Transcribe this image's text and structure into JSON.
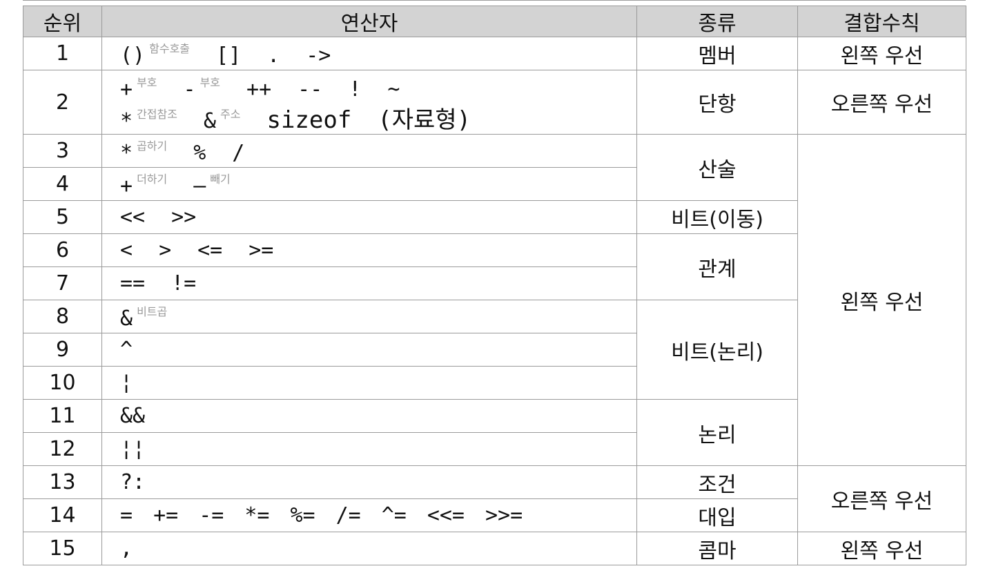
{
  "table": {
    "headers": [
      "순위",
      "연산자",
      "종류",
      "결합수칙"
    ],
    "rows": [
      {
        "rank": "1",
        "lines": [
          [
            {
              "op": "()",
              "note": "함수호출"
            },
            {
              "op": "[]"
            },
            {
              "op": "."
            },
            {
              "op": "->"
            }
          ]
        ]
      },
      {
        "rank": "2",
        "lines": [
          [
            {
              "op": "+",
              "note": "부호"
            },
            {
              "op": "-",
              "note": "부호"
            },
            {
              "op": "++"
            },
            {
              "op": "--"
            },
            {
              "op": "!"
            },
            {
              "op": "~"
            }
          ],
          [
            {
              "op": "*",
              "note": "간접참조"
            },
            {
              "op": "&",
              "note": "주소"
            },
            {
              "op": "sizeof"
            },
            {
              "op": "(자료형)"
            }
          ]
        ]
      },
      {
        "rank": "3",
        "lines": [
          [
            {
              "op": "*",
              "note": "곱하기"
            },
            {
              "op": "%"
            },
            {
              "op": "/"
            }
          ]
        ]
      },
      {
        "rank": "4",
        "lines": [
          [
            {
              "op": "+",
              "note": "더하기"
            },
            {
              "op": "—",
              "note": "빼기"
            }
          ]
        ]
      },
      {
        "rank": "5",
        "lines": [
          [
            {
              "op": "<<"
            },
            {
              "op": ">>"
            }
          ]
        ]
      },
      {
        "rank": "6",
        "lines": [
          [
            {
              "op": "<"
            },
            {
              "op": ">"
            },
            {
              "op": "<="
            },
            {
              "op": ">="
            }
          ]
        ]
      },
      {
        "rank": "7",
        "lines": [
          [
            {
              "op": "=="
            },
            {
              "op": "!="
            }
          ]
        ]
      },
      {
        "rank": "8",
        "lines": [
          [
            {
              "op": "&",
              "note": "비트곱"
            }
          ]
        ]
      },
      {
        "rank": "9",
        "lines": [
          [
            {
              "op": "^"
            }
          ]
        ]
      },
      {
        "rank": "10",
        "lines": [
          [
            {
              "op": "¦"
            }
          ]
        ]
      },
      {
        "rank": "11",
        "lines": [
          [
            {
              "op": "&&"
            }
          ]
        ]
      },
      {
        "rank": "12",
        "lines": [
          [
            {
              "op": "¦¦"
            }
          ]
        ]
      },
      {
        "rank": "13",
        "lines": [
          [
            {
              "op": "?:"
            }
          ]
        ]
      },
      {
        "rank": "14",
        "lines": [
          [
            {
              "op": "="
            },
            {
              "op": "+="
            },
            {
              "op": "-="
            },
            {
              "op": "*="
            },
            {
              "op": "%="
            },
            {
              "op": "/="
            },
            {
              "op": "^="
            },
            {
              "op": "<<="
            },
            {
              "op": ">>="
            }
          ]
        ]
      },
      {
        "rank": "15",
        "lines": [
          [
            {
              "op": ","
            }
          ]
        ]
      }
    ],
    "kinds": [
      {
        "label": "멤버",
        "rows": 1
      },
      {
        "label": "단항",
        "rows": 1
      },
      {
        "label": "산술",
        "rows": 2
      },
      {
        "label": "비트(이동)",
        "rows": 1
      },
      {
        "label": "관계",
        "rows": 2
      },
      {
        "label": "비트(논리)",
        "rows": 3
      },
      {
        "label": "논리",
        "rows": 2
      },
      {
        "label": "조건",
        "rows": 1
      },
      {
        "label": "대입",
        "rows": 1
      },
      {
        "label": "콤마",
        "rows": 1
      }
    ],
    "associativity": [
      {
        "label": "왼쪽 우선",
        "rows": 1
      },
      {
        "label": "오른쪽 우선",
        "rows": 1
      },
      {
        "label": "왼쪽 우선",
        "rows": 10
      },
      {
        "label": "오른쪽 우선",
        "rows": 2
      },
      {
        "label": "왼쪽 우선",
        "rows": 1
      }
    ]
  }
}
